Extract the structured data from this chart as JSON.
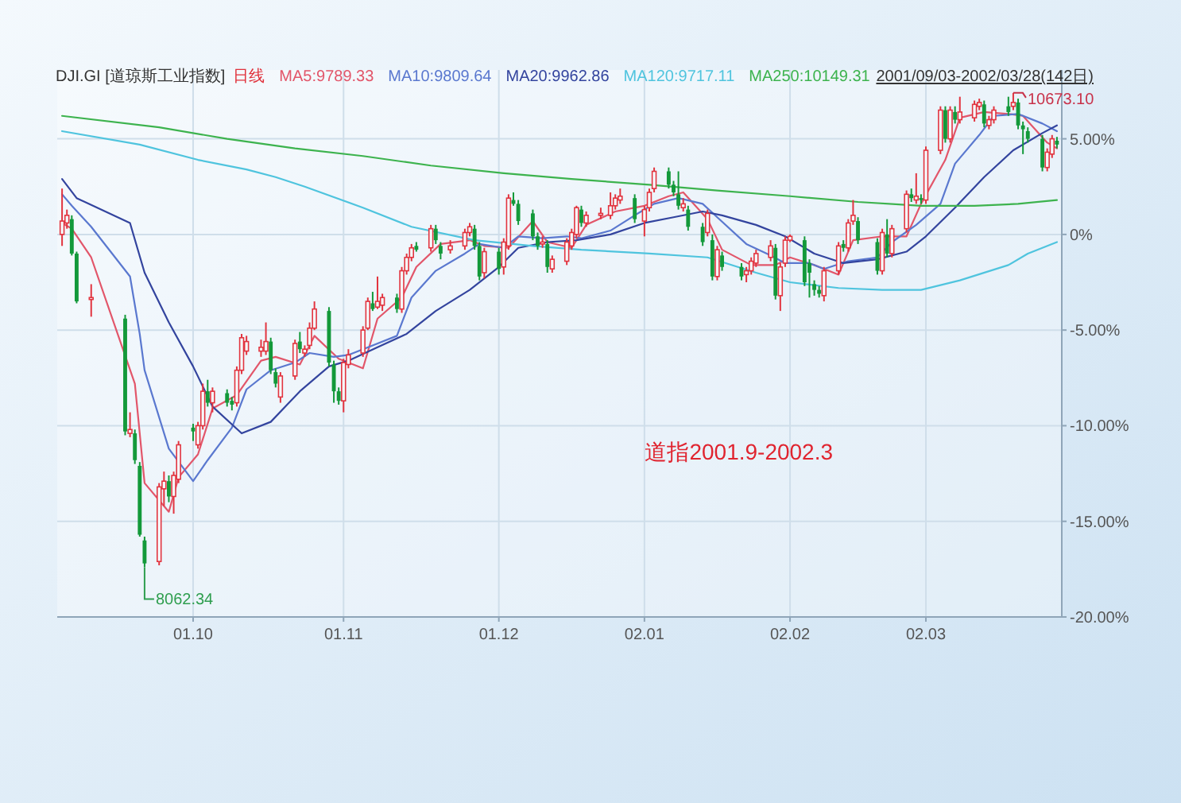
{
  "chart_data": {
    "type": "candlestick",
    "title": "道指2001.9-2002.3",
    "subtitle": "DJI.GI [道琼斯工业指数]",
    "legend_title": "日线",
    "legend": "top left",
    "grid": true,
    "x": [
      "2001-09-04",
      "2001-09-05",
      "2001-09-06",
      "2001-09-07",
      "2001-09-10",
      "2001-09-17",
      "2001-09-18",
      "2001-09-19",
      "2001-09-20",
      "2001-09-21",
      "2001-09-24",
      "2001-09-25",
      "2001-09-26",
      "2001-09-27",
      "2001-09-28",
      "2001-10-01",
      "2001-10-02",
      "2001-10-03",
      "2001-10-04",
      "2001-10-05",
      "2001-10-08",
      "2001-10-09",
      "2001-10-10",
      "2001-10-11",
      "2001-10-12",
      "2001-10-15",
      "2001-10-16",
      "2001-10-17",
      "2001-10-18",
      "2001-10-19",
      "2001-10-22",
      "2001-10-23",
      "2001-10-24",
      "2001-10-25",
      "2001-10-26",
      "2001-10-29",
      "2001-10-30",
      "2001-10-31",
      "2001-11-01",
      "2001-11-02",
      "2001-11-05",
      "2001-11-06",
      "2001-11-07",
      "2001-11-08",
      "2001-11-09",
      "2001-11-12",
      "2001-11-13",
      "2001-11-14",
      "2001-11-15",
      "2001-11-16",
      "2001-11-19",
      "2001-11-20",
      "2001-11-21",
      "2001-11-23",
      "2001-11-26",
      "2001-11-27",
      "2001-11-28",
      "2001-11-29",
      "2001-11-30",
      "2001-12-03",
      "2001-12-04",
      "2001-12-05",
      "2001-12-06",
      "2001-12-07",
      "2001-12-10",
      "2001-12-11",
      "2001-12-12",
      "2001-12-13",
      "2001-12-14",
      "2001-12-17",
      "2001-12-18",
      "2001-12-19",
      "2001-12-20",
      "2001-12-21",
      "2001-12-24",
      "2001-12-26",
      "2001-12-27",
      "2001-12-28",
      "2001-12-31",
      "2002-01-02",
      "2002-01-03",
      "2002-01-04",
      "2002-01-07",
      "2002-01-08",
      "2002-01-09",
      "2002-01-10",
      "2002-01-11",
      "2002-01-14",
      "2002-01-15",
      "2002-01-16",
      "2002-01-17",
      "2002-01-18",
      "2002-01-22",
      "2002-01-23",
      "2002-01-24",
      "2002-01-25",
      "2002-01-28",
      "2002-01-29",
      "2002-01-30",
      "2002-01-31",
      "2002-02-01",
      "2002-02-04",
      "2002-02-05",
      "2002-02-06",
      "2002-02-07",
      "2002-02-08",
      "2002-02-11",
      "2002-02-12",
      "2002-02-13",
      "2002-02-14",
      "2002-02-15",
      "2002-02-19",
      "2002-02-20",
      "2002-02-21",
      "2002-02-22",
      "2002-02-25",
      "2002-02-26",
      "2002-02-27",
      "2002-02-28",
      "2002-03-01",
      "2002-03-04",
      "2002-03-05",
      "2002-03-06",
      "2002-03-07",
      "2002-03-08",
      "2002-03-11",
      "2002-03-12",
      "2002-03-13",
      "2002-03-14",
      "2002-03-15",
      "2002-03-18",
      "2002-03-19",
      "2002-03-20",
      "2002-03-21",
      "2002-03-22",
      "2002-03-25",
      "2002-03-26",
      "2002-03-27",
      "2002-03-28"
    ],
    "ohlc": [
      [
        0.0,
        2.4,
        -0.6,
        0.7
      ],
      [
        0.6,
        1.3,
        0.3,
        1.0
      ],
      [
        0.8,
        1.0,
        -1.1,
        -1.0
      ],
      [
        -1.0,
        -0.9,
        -3.6,
        -3.5
      ],
      [
        -3.4,
        -2.6,
        -4.3,
        -3.3
      ],
      [
        -4.4,
        -4.2,
        -10.5,
        -10.3
      ],
      [
        -10.4,
        -9.3,
        -10.6,
        -10.2
      ],
      [
        -10.4,
        -10.2,
        -12.0,
        -11.8
      ],
      [
        -12.1,
        -11.9,
        -15.8,
        -15.7
      ],
      [
        -16.0,
        -15.8,
        -17.4,
        -17.2
      ],
      [
        -17.1,
        -13.0,
        -17.3,
        -13.2
      ],
      [
        -13.3,
        -12.4,
        -14.2,
        -12.9
      ],
      [
        -12.9,
        -12.6,
        -14.0,
        -13.7
      ],
      [
        -13.7,
        -12.4,
        -14.6,
        -12.6
      ],
      [
        -12.8,
        -10.8,
        -13.0,
        -11.0
      ],
      [
        -10.1,
        -9.9,
        -10.8,
        -10.3
      ],
      [
        -11.0,
        -9.8,
        -11.2,
        -10.0
      ],
      [
        -10.0,
        -7.8,
        -10.2,
        -8.2
      ],
      [
        -8.2,
        -7.6,
        -9.0,
        -8.8
      ],
      [
        -8.8,
        -8.0,
        -9.3,
        -8.2
      ],
      [
        -8.3,
        -8.1,
        -9.0,
        -8.8
      ],
      [
        -8.7,
        -8.5,
        -9.2,
        -8.9
      ],
      [
        -8.8,
        -6.9,
        -9.0,
        -7.1
      ],
      [
        -7.1,
        -5.2,
        -7.3,
        -5.4
      ],
      [
        -6.1,
        -5.3,
        -6.3,
        -5.6
      ],
      [
        -6.1,
        -5.5,
        -6.4,
        -5.9
      ],
      [
        -6.1,
        -4.6,
        -6.3,
        -5.6
      ],
      [
        -5.6,
        -5.4,
        -7.3,
        -7.1
      ],
      [
        -7.2,
        -7.0,
        -8.0,
        -7.8
      ],
      [
        -8.5,
        -7.2,
        -8.8,
        -7.4
      ],
      [
        -7.4,
        -5.5,
        -7.6,
        -5.7
      ],
      [
        -5.6,
        -5.1,
        -6.2,
        -6.0
      ],
      [
        -6.2,
        -5.8,
        -6.4,
        -6.0
      ],
      [
        -5.8,
        -4.6,
        -6.0,
        -4.9
      ],
      [
        -4.9,
        -3.5,
        -5.0,
        -3.9
      ],
      [
        -4.0,
        -3.8,
        -6.9,
        -6.7
      ],
      [
        -6.8,
        -6.6,
        -8.8,
        -8.2
      ],
      [
        -8.2,
        -8.0,
        -8.9,
        -8.7
      ],
      [
        -8.7,
        -6.5,
        -9.3,
        -6.7
      ],
      [
        -6.8,
        -6.0,
        -7.0,
        -6.3
      ],
      [
        -6.2,
        -4.8,
        -6.4,
        -5.0
      ],
      [
        -4.9,
        -3.3,
        -5.0,
        -3.5
      ],
      [
        -3.6,
        -3.0,
        -4.0,
        -3.9
      ],
      [
        -3.8,
        -2.2,
        -3.9,
        -3.5
      ],
      [
        -3.7,
        -3.1,
        -4.0,
        -3.3
      ],
      [
        -3.3,
        -3.1,
        -4.1,
        -3.9
      ],
      [
        -3.9,
        -1.7,
        -4.1,
        -1.9
      ],
      [
        -1.9,
        -1.0,
        -2.1,
        -1.2
      ],
      [
        -1.2,
        -0.5,
        -1.4,
        -0.7
      ],
      [
        -0.6,
        -0.4,
        -0.9,
        -0.8
      ],
      [
        -0.7,
        0.5,
        -0.9,
        0.3
      ],
      [
        0.3,
        0.5,
        -0.5,
        -0.3
      ],
      [
        -0.6,
        -0.4,
        -1.3,
        -1.0
      ],
      [
        -0.8,
        -0.3,
        -1.0,
        -0.6
      ],
      [
        -0.6,
        0.3,
        -0.8,
        0.1
      ],
      [
        0.1,
        0.6,
        -0.1,
        0.4
      ],
      [
        0.3,
        0.5,
        -0.8,
        -0.6
      ],
      [
        -0.6,
        -0.4,
        -2.4,
        -2.2
      ],
      [
        -2.0,
        -0.7,
        -2.3,
        -0.9
      ],
      [
        -0.9,
        -0.7,
        -2.1,
        -1.8
      ],
      [
        -1.7,
        -0.2,
        -2.1,
        -0.4
      ],
      [
        -0.6,
        2.1,
        -0.8,
        1.9
      ],
      [
        1.8,
        2.2,
        1.5,
        1.6
      ],
      [
        1.6,
        1.8,
        0.5,
        0.7
      ],
      [
        1.1,
        1.3,
        -0.3,
        -0.1
      ],
      [
        -0.1,
        0.1,
        -0.8,
        -0.6
      ],
      [
        -0.5,
        -0.1,
        -0.7,
        -0.4
      ],
      [
        -0.5,
        -0.3,
        -2.0,
        -1.7
      ],
      [
        -1.8,
        -1.1,
        -2.0,
        -1.3
      ],
      [
        -1.4,
        -0.2,
        -1.6,
        -0.4
      ],
      [
        -0.6,
        0.3,
        -0.8,
        0.1
      ],
      [
        0.0,
        1.5,
        -0.2,
        1.4
      ],
      [
        1.3,
        1.5,
        0.4,
        0.6
      ],
      [
        0.6,
        1.2,
        0.4,
        1.0
      ],
      [
        1.0,
        1.4,
        0.8,
        1.1
      ],
      [
        1.0,
        2.2,
        0.8,
        1.5
      ],
      [
        1.5,
        2.1,
        1.3,
        1.9
      ],
      [
        1.8,
        2.4,
        1.6,
        2.0
      ],
      [
        1.9,
        2.1,
        0.6,
        0.8
      ],
      [
        0.7,
        1.5,
        -0.1,
        1.3
      ],
      [
        1.4,
        2.4,
        1.2,
        2.2
      ],
      [
        2.4,
        3.5,
        2.2,
        3.3
      ],
      [
        3.3,
        3.5,
        2.4,
        2.6
      ],
      [
        2.6,
        2.8,
        2.0,
        2.2
      ],
      [
        2.1,
        3.3,
        1.3,
        1.5
      ],
      [
        1.4,
        1.9,
        1.2,
        1.6
      ],
      [
        1.3,
        1.5,
        0.2,
        0.4
      ],
      [
        0.4,
        0.6,
        -0.6,
        -0.4
      ],
      [
        0.1,
        1.3,
        -0.1,
        1.1
      ],
      [
        -0.3,
        0.0,
        -2.4,
        -2.2
      ],
      [
        -2.2,
        -0.6,
        -2.4,
        -0.8
      ],
      [
        -1.1,
        -0.9,
        -1.9,
        -1.7
      ],
      [
        -1.7,
        -1.5,
        -2.4,
        -2.2
      ],
      [
        -2.1,
        -1.7,
        -2.5,
        -1.9
      ],
      [
        -1.9,
        -1.2,
        -2.1,
        -1.4
      ],
      [
        -1.5,
        -0.8,
        -1.7,
        -1.0
      ],
      [
        -1.2,
        -0.3,
        -1.4,
        -0.6
      ],
      [
        -0.7,
        -0.5,
        -3.4,
        -3.2
      ],
      [
        -3.2,
        -1.5,
        -4.0,
        -1.7
      ],
      [
        -1.5,
        -0.1,
        -1.7,
        -0.3
      ],
      [
        -0.3,
        0.0,
        -0.4,
        -0.1
      ],
      [
        -0.3,
        -0.1,
        -2.7,
        -2.5
      ],
      [
        -1.5,
        -1.3,
        -3.3,
        -2.0
      ],
      [
        -2.6,
        -2.4,
        -3.2,
        -2.9
      ],
      [
        -2.9,
        -2.7,
        -3.3,
        -3.1
      ],
      [
        -3.2,
        -1.7,
        -3.5,
        -1.9
      ],
      [
        -1.9,
        -0.4,
        -2.1,
        -0.6
      ],
      [
        -0.5,
        -0.3,
        -0.9,
        -0.7
      ],
      [
        -0.7,
        0.8,
        -0.9,
        0.6
      ],
      [
        0.7,
        1.8,
        0.5,
        1.0
      ],
      [
        0.7,
        0.9,
        -0.5,
        -0.3
      ],
      [
        -0.4,
        -0.2,
        -2.1,
        -1.9
      ],
      [
        -1.9,
        0.3,
        -2.1,
        0.1
      ],
      [
        0.0,
        0.8,
        -1.2,
        -1.0
      ],
      [
        -1.0,
        0.5,
        -1.2,
        0.3
      ],
      [
        0.3,
        2.3,
        0.1,
        2.1
      ],
      [
        2.1,
        2.4,
        1.7,
        1.9
      ],
      [
        1.8,
        3.2,
        1.6,
        2.0
      ],
      [
        1.9,
        2.1,
        1.6,
        1.8
      ],
      [
        1.8,
        4.6,
        1.6,
        4.4
      ],
      [
        4.4,
        6.7,
        4.2,
        6.5
      ],
      [
        6.5,
        6.7,
        4.8,
        5.0
      ],
      [
        5.0,
        6.7,
        4.8,
        6.5
      ],
      [
        6.4,
        6.7,
        5.8,
        6.0
      ],
      [
        6.0,
        7.2,
        5.8,
        6.4
      ],
      [
        6.1,
        7.0,
        5.9,
        6.8
      ],
      [
        6.7,
        7.1,
        6.5,
        6.9
      ],
      [
        6.8,
        7.0,
        5.6,
        5.8
      ],
      [
        5.7,
        6.2,
        5.5,
        6.0
      ],
      [
        6.0,
        6.7,
        5.8,
        6.5
      ],
      [
        6.7,
        7.2,
        6.2,
        6.4
      ],
      [
        6.7,
        7.4,
        6.5,
        6.9
      ],
      [
        6.9,
        7.1,
        5.5,
        5.7
      ],
      [
        5.7,
        5.9,
        4.2,
        5.5
      ],
      [
        5.4,
        5.6,
        4.8,
        5.0
      ],
      [
        5.0,
        5.2,
        3.3,
        3.5
      ],
      [
        3.5,
        4.5,
        3.3,
        4.3
      ],
      [
        4.2,
        5.2,
        4.0,
        5.0
      ],
      [
        4.9,
        5.1,
        4.5,
        4.7
      ]
    ],
    "series": [
      {
        "type": "line",
        "name": "MA5:9789.33",
        "color": "#e2566a",
        "x": [
          "2001-09-04",
          "2001-09-06",
          "2001-09-10",
          "2001-09-19",
          "2001-09-21",
          "2001-09-26",
          "2001-09-28",
          "2001-10-02",
          "2001-10-05",
          "2001-10-10",
          "2001-10-15",
          "2001-10-18",
          "2001-10-23",
          "2001-10-26",
          "2001-10-31",
          "2001-11-05",
          "2001-11-08",
          "2001-11-13",
          "2001-11-16",
          "2001-11-21",
          "2001-11-27",
          "2001-11-30",
          "2001-12-05",
          "2001-12-10",
          "2001-12-13",
          "2001-12-18",
          "2001-12-21",
          "2001-12-27",
          "2002-01-02",
          "2002-01-07",
          "2002-01-10",
          "2002-01-15",
          "2002-01-18",
          "2002-01-24",
          "2002-01-29",
          "2002-02-01",
          "2002-02-06",
          "2002-02-11",
          "2002-02-14",
          "2002-02-20",
          "2002-02-25",
          "2002-02-28",
          "2002-03-05",
          "2002-03-08",
          "2002-03-13",
          "2002-03-18",
          "2002-03-21",
          "2002-03-26",
          "2002-03-28"
        ],
        "values": [
          0.6,
          0.3,
          -1.2,
          -7.8,
          -13.0,
          -14.5,
          -12.7,
          -11.5,
          -9.1,
          -8.4,
          -6.6,
          -6.4,
          -6.8,
          -5.3,
          -6.5,
          -7.0,
          -4.4,
          -3.3,
          -1.7,
          -0.5,
          -0.3,
          -0.6,
          -0.7,
          0.7,
          -0.4,
          -0.7,
          0.5,
          1.2,
          1.5,
          2.0,
          2.2,
          0.8,
          -0.8,
          -1.6,
          -1.6,
          -1.2,
          -1.6,
          -2.1,
          -0.3,
          -0.1,
          -0.1,
          1.6,
          3.9,
          6.1,
          6.4,
          6.3,
          6.2,
          4.8,
          4.5
        ]
      },
      {
        "type": "line",
        "name": "MA10:9809.64",
        "color": "#5a78cf",
        "x": [
          "2001-09-04",
          "2001-09-06",
          "2001-09-10",
          "2001-09-18",
          "2001-09-20",
          "2001-09-21",
          "2001-09-26",
          "2001-10-01",
          "2001-10-04",
          "2001-10-09",
          "2001-10-12",
          "2001-10-17",
          "2001-10-22",
          "2001-10-25",
          "2001-10-30",
          "2001-11-02",
          "2001-11-07",
          "2001-11-12",
          "2001-11-15",
          "2001-11-20",
          "2001-11-26",
          "2001-11-29",
          "2001-12-04",
          "2001-12-07",
          "2001-12-12",
          "2001-12-17",
          "2001-12-20",
          "2001-12-26",
          "2001-12-31",
          "2002-01-04",
          "2002-01-09",
          "2002-01-14",
          "2002-01-17",
          "2002-01-23",
          "2002-01-28",
          "2002-01-31",
          "2002-02-05",
          "2002-02-08",
          "2002-02-13",
          "2002-02-19",
          "2002-02-22",
          "2002-02-27",
          "2002-03-04",
          "2002-03-07",
          "2002-03-12",
          "2002-03-15",
          "2002-03-20",
          "2002-03-25",
          "2002-03-28"
        ],
        "values": [
          2.1,
          1.5,
          0.4,
          -2.2,
          -5.2,
          -7.1,
          -11.2,
          -12.9,
          -11.8,
          -10.1,
          -8.1,
          -7.1,
          -6.7,
          -6.2,
          -6.4,
          -6.3,
          -5.8,
          -5.3,
          -3.3,
          -1.9,
          -1.0,
          -0.5,
          -0.7,
          -0.1,
          -0.2,
          -0.1,
          -0.2,
          0.2,
          1.0,
          1.6,
          1.9,
          1.6,
          0.9,
          -0.5,
          -1.1,
          -1.5,
          -1.5,
          -1.8,
          -1.4,
          -1.2,
          -0.4,
          0.5,
          1.6,
          3.7,
          5.2,
          6.2,
          6.3,
          5.8,
          5.4
        ]
      },
      {
        "type": "line",
        "name": "MA20:9962.86",
        "color": "#33449e",
        "x": [
          "2001-09-04",
          "2001-09-07",
          "2001-09-18",
          "2001-09-21",
          "2001-09-26",
          "2001-10-01",
          "2001-10-05",
          "2001-10-11",
          "2001-10-17",
          "2001-10-23",
          "2001-10-29",
          "2001-11-02",
          "2001-11-08",
          "2001-11-14",
          "2001-11-20",
          "2001-11-27",
          "2001-12-03",
          "2001-12-07",
          "2001-12-13",
          "2001-12-19",
          "2001-12-26",
          "2002-01-02",
          "2002-01-08",
          "2002-01-14",
          "2002-01-18",
          "2002-01-25",
          "2002-01-31",
          "2002-02-06",
          "2002-02-12",
          "2002-02-19",
          "2002-02-25",
          "2002-03-01",
          "2002-03-07",
          "2002-03-13",
          "2002-03-19",
          "2002-03-25",
          "2002-03-28"
        ],
        "values": [
          2.9,
          1.9,
          0.6,
          -2.0,
          -4.6,
          -6.9,
          -9.0,
          -10.4,
          -9.8,
          -8.2,
          -6.9,
          -6.6,
          -5.9,
          -5.2,
          -4.0,
          -2.9,
          -1.7,
          -0.7,
          -0.4,
          -0.3,
          0.0,
          0.6,
          0.9,
          1.2,
          1.0,
          0.5,
          -0.1,
          -1.0,
          -1.5,
          -1.3,
          -0.9,
          -0.1,
          1.4,
          3.0,
          4.4,
          5.3,
          5.7
        ]
      },
      {
        "type": "line",
        "name": "MA120:9717.11",
        "color": "#4fc4de",
        "x": [
          "2001-09-04",
          "2001-09-20",
          "2001-10-02",
          "2001-10-12",
          "2001-10-18",
          "2001-10-24",
          "2001-11-05",
          "2001-11-15",
          "2001-11-28",
          "2001-12-10",
          "2001-12-20",
          "2002-01-03",
          "2002-01-15",
          "2002-01-25",
          "2002-02-01",
          "2002-02-11",
          "2002-02-20",
          "2002-02-28",
          "2002-03-08",
          "2002-03-18",
          "2002-03-22",
          "2002-03-28"
        ],
        "values": [
          5.4,
          4.7,
          3.9,
          3.4,
          3.0,
          2.5,
          1.4,
          0.4,
          -0.3,
          -0.6,
          -0.8,
          -1.0,
          -1.2,
          -2.0,
          -2.5,
          -2.8,
          -2.9,
          -2.9,
          -2.4,
          -1.6,
          -1.0,
          -0.4
        ]
      },
      {
        "type": "line",
        "name": "MA250:10149.31",
        "color": "#3db34e",
        "x": [
          "2001-09-04",
          "2001-09-24",
          "2001-10-08",
          "2001-10-22",
          "2001-11-05",
          "2001-11-19",
          "2001-12-04",
          "2001-12-18",
          "2002-01-03",
          "2002-01-17",
          "2002-02-01",
          "2002-02-15",
          "2002-02-28",
          "2002-03-11",
          "2002-03-20",
          "2002-03-28"
        ],
        "values": [
          6.2,
          5.6,
          5.0,
          4.5,
          4.1,
          3.6,
          3.2,
          2.9,
          2.6,
          2.3,
          2.0,
          1.7,
          1.5,
          1.5,
          1.6,
          1.8
        ]
      }
    ],
    "xlim": [
      "2001-09-03",
      "2002-03-29"
    ],
    "xticks": [
      {
        "value": "2001-10-01",
        "label": "01.10"
      },
      {
        "value": "2001-11-01",
        "label": "01.11"
      },
      {
        "value": "2001-12-03",
        "label": "01.12"
      },
      {
        "value": "2002-01-02",
        "label": "02.01"
      },
      {
        "value": "2002-02-01",
        "label": "02.02"
      },
      {
        "value": "2002-03-01",
        "label": "02.03"
      }
    ],
    "ylim": [
      -20,
      8.6
    ],
    "yticks": [
      {
        "value": 5,
        "label": "5.00%"
      },
      {
        "value": 0,
        "label": "0%"
      },
      {
        "value": -5,
        "label": "-5.00%"
      },
      {
        "value": -10,
        "label": "-10.00%"
      },
      {
        "value": -15,
        "label": "-15.00%"
      },
      {
        "value": -20,
        "label": "-20.00%"
      }
    ],
    "annotations": [
      "2001/09/03-2002/03/28(142日)",
      {
        "text": "8062.34",
        "x": "2001-09-21",
        "y": -17.4
      },
      {
        "text": "10673.10",
        "x": "2002-03-19",
        "y": 7.4
      }
    ]
  }
}
